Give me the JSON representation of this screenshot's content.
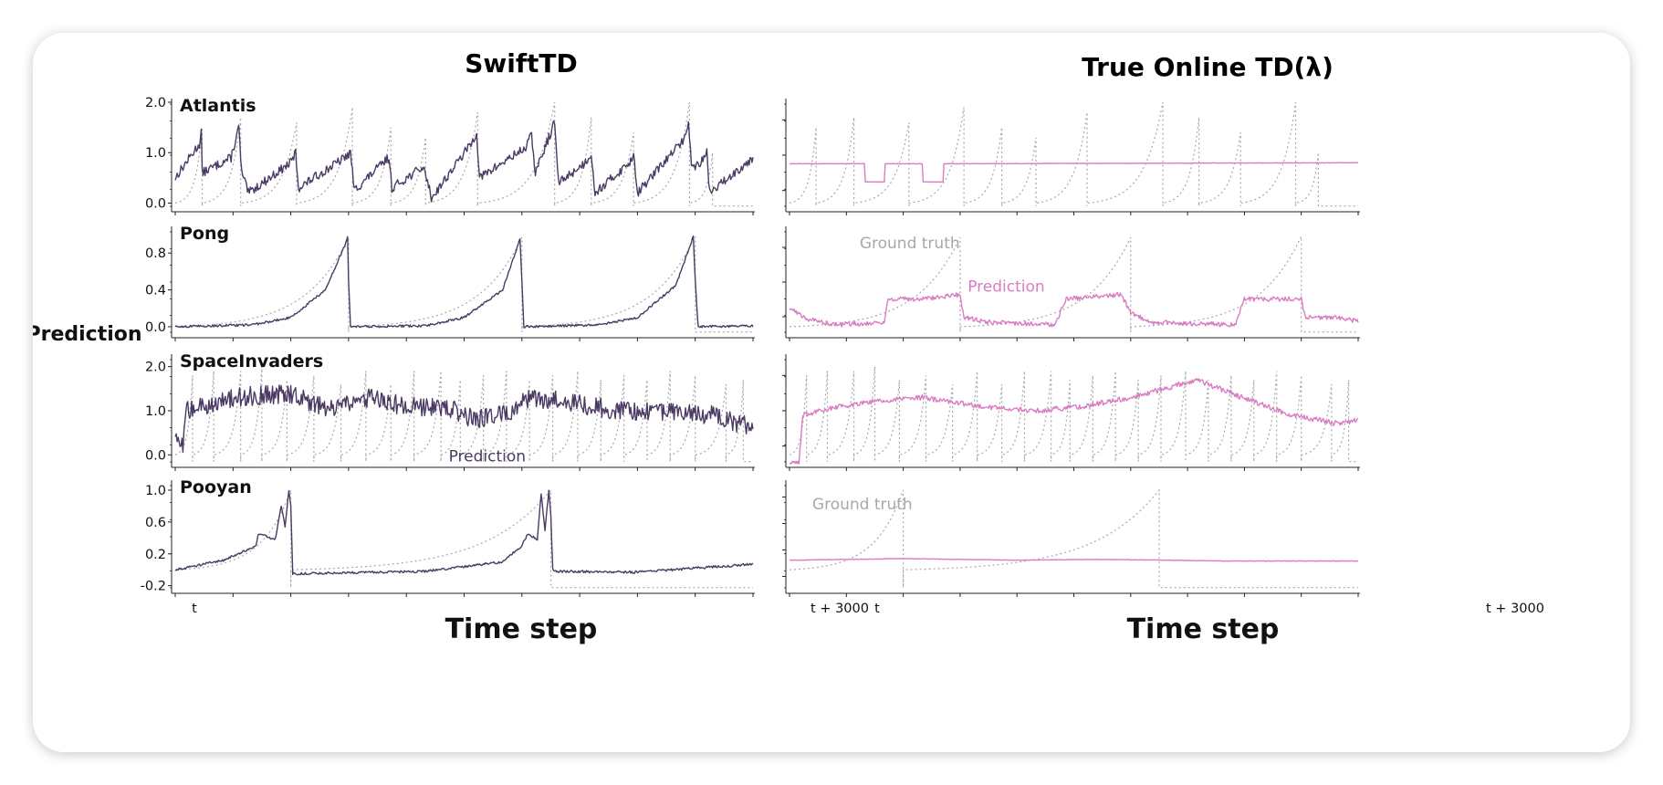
{
  "colors": {
    "swift": "#4a3a64",
    "tod": "#da7cc2",
    "truth": "#a8a8a8",
    "axis": "#222222",
    "title_swift": "#4f3b6e",
    "title_tod": "#e07cc4"
  },
  "figure": {
    "column_titles": [
      "SwiftTD",
      "True Online TD(λ)"
    ],
    "ylabel": "Prediction",
    "xlabel": "Time step",
    "x_tick_labels": [
      "t",
      "t + 3000"
    ]
  },
  "chart_data": [
    {
      "id": "swift-atlantis",
      "type": "line",
      "game": "Atlantis",
      "method": "SwiftTD",
      "xlim": [
        0,
        3000
      ],
      "ylim": [
        -0.1,
        2.0
      ],
      "yticks": [
        "0.0",
        "1.0",
        "2.0"
      ],
      "truth_peaks": [
        [
          140,
          1.5
        ],
        [
          340,
          1.7
        ],
        [
          630,
          1.6
        ],
        [
          920,
          1.9
        ],
        [
          1120,
          1.5
        ],
        [
          1300,
          1.3
        ],
        [
          1570,
          1.8
        ],
        [
          1970,
          2.0
        ],
        [
          2160,
          1.7
        ],
        [
          2380,
          1.4
        ],
        [
          2670,
          2.0
        ],
        [
          2790,
          1.0
        ]
      ],
      "truth_shape": "exp",
      "series": [
        {
          "name": "Prediction",
          "noise": 0.09,
          "points": [
            [
              0,
              0.5
            ],
            [
              130,
              1.2
            ],
            [
              135,
              1.45
            ],
            [
              140,
              0.6
            ],
            [
              290,
              0.9
            ],
            [
              330,
              1.5
            ],
            [
              345,
              0.6
            ],
            [
              380,
              0.2
            ],
            [
              600,
              0.8
            ],
            [
              625,
              1.0
            ],
            [
              640,
              0.3
            ],
            [
              880,
              0.9
            ],
            [
              910,
              1.0
            ],
            [
              930,
              0.25
            ],
            [
              1080,
              0.8
            ],
            [
              1110,
              0.9
            ],
            [
              1125,
              0.3
            ],
            [
              1280,
              0.7
            ],
            [
              1300,
              0.6
            ],
            [
              1330,
              0.1
            ],
            [
              1540,
              1.2
            ],
            [
              1565,
              1.4
            ],
            [
              1580,
              0.5
            ],
            [
              1820,
              1.1
            ],
            [
              1850,
              1.35
            ],
            [
              1870,
              0.6
            ],
            [
              1960,
              1.5
            ],
            [
              1970,
              1.6
            ],
            [
              1990,
              0.4
            ],
            [
              2130,
              0.8
            ],
            [
              2160,
              1.0
            ],
            [
              2180,
              0.2
            ],
            [
              2360,
              0.8
            ],
            [
              2380,
              1.0
            ],
            [
              2400,
              0.2
            ],
            [
              2650,
              1.3
            ],
            [
              2665,
              1.7
            ],
            [
              2680,
              0.7
            ],
            [
              2730,
              0.8
            ],
            [
              2760,
              1.0
            ],
            [
              2775,
              0.2
            ],
            [
              3000,
              0.9
            ]
          ]
        }
      ]
    },
    {
      "id": "tod-atlantis",
      "type": "line",
      "game": "Atlantis",
      "method": "True Online TD(λ)",
      "xlim": [
        0,
        3000
      ],
      "ylim": [
        -0.1,
        2.0
      ],
      "yticks": [
        "",
        "",
        ""
      ],
      "truth_peaks": [
        [
          140,
          1.5
        ],
        [
          340,
          1.7
        ],
        [
          630,
          1.6
        ],
        [
          920,
          1.9
        ],
        [
          1120,
          1.5
        ],
        [
          1300,
          1.3
        ],
        [
          1570,
          1.8
        ],
        [
          1970,
          2.0
        ],
        [
          2160,
          1.7
        ],
        [
          2380,
          1.4
        ],
        [
          2670,
          2.0
        ],
        [
          2790,
          1.0
        ]
      ],
      "truth_shape": "exp",
      "series": [
        {
          "name": "Prediction",
          "noise": 0.004,
          "points": [
            [
              0,
              0.78
            ],
            [
              395,
              0.78
            ],
            [
              396,
              0.42
            ],
            [
              500,
              0.42
            ],
            [
              501,
              0.78
            ],
            [
              700,
              0.78
            ],
            [
              701,
              0.42
            ],
            [
              810,
              0.42
            ],
            [
              811,
              0.78
            ],
            [
              3000,
              0.8
            ]
          ]
        }
      ]
    },
    {
      "id": "swift-pong",
      "type": "line",
      "game": "Pong",
      "method": "SwiftTD",
      "xlim": [
        0,
        3000
      ],
      "ylim": [
        -0.08,
        1.05
      ],
      "yticks": [
        "0.0",
        "0.4",
        "0.8"
      ],
      "truth_peaks": [
        [
          900,
          0.97
        ],
        [
          1800,
          0.97
        ],
        [
          2700,
          0.98
        ]
      ],
      "truth_shape": "exp",
      "series": [
        {
          "name": "Prediction",
          "noise": 0.012,
          "points": [
            [
              0,
              0.0
            ],
            [
              400,
              0.02
            ],
            [
              600,
              0.1
            ],
            [
              780,
              0.4
            ],
            [
              880,
              0.88
            ],
            [
              895,
              0.97
            ],
            [
              900,
              0.5
            ],
            [
              910,
              0.0
            ],
            [
              1300,
              0.01
            ],
            [
              1500,
              0.1
            ],
            [
              1700,
              0.4
            ],
            [
              1790,
              0.95
            ],
            [
              1800,
              0.5
            ],
            [
              1810,
              0.0
            ],
            [
              2200,
              0.02
            ],
            [
              2400,
              0.1
            ],
            [
              2600,
              0.45
            ],
            [
              2690,
              0.98
            ],
            [
              2700,
              0.5
            ],
            [
              2715,
              0.0
            ],
            [
              3000,
              0.01
            ]
          ]
        }
      ]
    },
    {
      "id": "tod-pong",
      "type": "line",
      "game": "Pong",
      "method": "True Online TD(λ)",
      "xlim": [
        0,
        3000
      ],
      "ylim": [
        -0.08,
        1.05
      ],
      "yticks": [
        "",
        "",
        ""
      ],
      "truth_peaks": [
        [
          900,
          0.97
        ],
        [
          1800,
          0.97
        ],
        [
          2700,
          0.98
        ]
      ],
      "truth_shape": "exp",
      "series": [
        {
          "name": "Prediction",
          "noise": 0.025,
          "points": [
            [
              0,
              0.2
            ],
            [
              100,
              0.08
            ],
            [
              250,
              0.02
            ],
            [
              500,
              0.05
            ],
            [
              520,
              0.3
            ],
            [
              700,
              0.3
            ],
            [
              900,
              0.35
            ],
            [
              920,
              0.1
            ],
            [
              1050,
              0.05
            ],
            [
              1400,
              0.02
            ],
            [
              1460,
              0.3
            ],
            [
              1750,
              0.35
            ],
            [
              1800,
              0.15
            ],
            [
              1900,
              0.05
            ],
            [
              2350,
              0.02
            ],
            [
              2400,
              0.3
            ],
            [
              2700,
              0.3
            ],
            [
              2720,
              0.1
            ],
            [
              2900,
              0.1
            ],
            [
              3000,
              0.06
            ]
          ]
        }
      ],
      "annotations": [
        {
          "text": "Ground truth",
          "color": "truth",
          "x": 370,
          "y": 0.85
        },
        {
          "text": "Prediction",
          "color": "tod",
          "x": 940,
          "y": 0.38
        }
      ]
    },
    {
      "id": "swift-spaceinvaders",
      "type": "line",
      "game": "SpaceInvaders",
      "method": "SwiftTD",
      "xlim": [
        0,
        3000
      ],
      "ylim": [
        -0.2,
        2.2
      ],
      "yticks": [
        "0.0",
        "1.0",
        "2.0"
      ],
      "truth_peaks": [
        [
          90,
          1.8
        ],
        [
          200,
          1.9
        ],
        [
          340,
          1.9
        ],
        [
          450,
          2.0
        ],
        [
          580,
          1.7
        ],
        [
          720,
          1.8
        ],
        [
          860,
          1.6
        ],
        [
          990,
          1.9
        ],
        [
          1120,
          1.6
        ],
        [
          1240,
          1.9
        ],
        [
          1380,
          1.9
        ],
        [
          1480,
          1.7
        ],
        [
          1600,
          1.8
        ],
        [
          1720,
          1.9
        ],
        [
          1840,
          1.7
        ],
        [
          1960,
          1.8
        ],
        [
          2090,
          1.9
        ],
        [
          2210,
          1.7
        ],
        [
          2330,
          1.8
        ],
        [
          2450,
          1.7
        ],
        [
          2570,
          1.9
        ],
        [
          2700,
          1.8
        ],
        [
          2860,
          1.6
        ],
        [
          2950,
          1.7
        ]
      ],
      "truth_shape": "exp",
      "series": [
        {
          "name": "Prediction",
          "noise": 0.22,
          "points": [
            [
              0,
              0.3
            ],
            [
              40,
              0.2
            ],
            [
              60,
              1.0
            ],
            [
              300,
              1.3
            ],
            [
              600,
              1.4
            ],
            [
              800,
              1.0
            ],
            [
              1000,
              1.3
            ],
            [
              1200,
              1.1
            ],
            [
              1400,
              1.1
            ],
            [
              1550,
              0.8
            ],
            [
              1700,
              0.9
            ],
            [
              1850,
              1.3
            ],
            [
              2050,
              1.2
            ],
            [
              2300,
              1.0
            ],
            [
              2500,
              1.0
            ],
            [
              2800,
              0.9
            ],
            [
              3000,
              0.6
            ]
          ]
        }
      ],
      "annotations": [
        {
          "text": "Prediction",
          "color": "swift",
          "x": 1420,
          "y": -0.15
        }
      ]
    },
    {
      "id": "tod-spaceinvaders",
      "type": "line",
      "game": "SpaceInvaders",
      "method": "True Online TD(λ)",
      "xlim": [
        0,
        3000
      ],
      "ylim": [
        -0.2,
        2.2
      ],
      "yticks": [
        "",
        "",
        ""
      ],
      "truth_peaks": [
        [
          90,
          1.8
        ],
        [
          200,
          1.9
        ],
        [
          340,
          1.9
        ],
        [
          450,
          2.0
        ],
        [
          580,
          1.7
        ],
        [
          720,
          1.8
        ],
        [
          860,
          1.6
        ],
        [
          990,
          1.9
        ],
        [
          1120,
          1.6
        ],
        [
          1240,
          1.9
        ],
        [
          1380,
          1.9
        ],
        [
          1480,
          1.7
        ],
        [
          1600,
          1.8
        ],
        [
          1720,
          1.9
        ],
        [
          1840,
          1.7
        ],
        [
          1960,
          1.8
        ],
        [
          2090,
          1.9
        ],
        [
          2210,
          1.7
        ],
        [
          2330,
          1.8
        ],
        [
          2450,
          1.7
        ],
        [
          2570,
          1.9
        ],
        [
          2700,
          1.8
        ],
        [
          2860,
          1.6
        ],
        [
          2950,
          1.7
        ]
      ],
      "truth_shape": "exp",
      "series": [
        {
          "name": "Prediction",
          "noise": 0.06,
          "points": [
            [
              0,
              -0.2
            ],
            [
              50,
              -0.2
            ],
            [
              70,
              0.9
            ],
            [
              150,
              1.0
            ],
            [
              400,
              1.2
            ],
            [
              700,
              1.3
            ],
            [
              1000,
              1.1
            ],
            [
              1300,
              1.0
            ],
            [
              1550,
              1.1
            ],
            [
              1800,
              1.3
            ],
            [
              2150,
              1.7
            ],
            [
              2450,
              1.2
            ],
            [
              2650,
              0.9
            ],
            [
              2900,
              0.7
            ],
            [
              3000,
              0.8
            ]
          ]
        }
      ]
    },
    {
      "id": "swift-pooyan",
      "type": "line",
      "game": "Pooyan",
      "method": "SwiftTD",
      "xlim": [
        0,
        3000
      ],
      "ylim": [
        -0.25,
        1.08
      ],
      "yticks": [
        "-0.2",
        "0.2",
        "0.6",
        "1.0"
      ],
      "truth_peaks": [
        [
          600,
          1.0
        ],
        [
          1950,
          1.0
        ]
      ],
      "truth_shape": "exp",
      "series": [
        {
          "name": "Prediction",
          "noise": 0.015,
          "points": [
            [
              0,
              0.0
            ],
            [
              250,
              0.12
            ],
            [
              420,
              0.3
            ],
            [
              430,
              0.45
            ],
            [
              520,
              0.38
            ],
            [
              550,
              0.8
            ],
            [
              570,
              0.55
            ],
            [
              590,
              1.0
            ],
            [
              600,
              0.8
            ],
            [
              610,
              -0.05
            ],
            [
              620,
              -0.05
            ],
            [
              1300,
              -0.02
            ],
            [
              1700,
              0.1
            ],
            [
              1800,
              0.3
            ],
            [
              1830,
              0.45
            ],
            [
              1880,
              0.38
            ],
            [
              1900,
              0.95
            ],
            [
              1920,
              0.5
            ],
            [
              1940,
              1.0
            ],
            [
              1950,
              0.7
            ],
            [
              1960,
              0.0
            ],
            [
              1980,
              -0.02
            ],
            [
              2400,
              -0.03
            ],
            [
              3000,
              0.07
            ]
          ]
        }
      ]
    },
    {
      "id": "tod-pooyan",
      "type": "line",
      "game": "Pooyan",
      "method": "True Online TD(λ)",
      "xlim": [
        0,
        3000
      ],
      "ylim": [
        -0.25,
        1.08
      ],
      "yticks": [
        "",
        "",
        "",
        ""
      ],
      "truth_peaks": [
        [
          600,
          1.0
        ],
        [
          1950,
          1.0
        ]
      ],
      "truth_shape": "exp",
      "series": [
        {
          "name": "Prediction",
          "noise": 0.003,
          "points": [
            [
              0,
              0.12
            ],
            [
              300,
              0.13
            ],
            [
              600,
              0.14
            ],
            [
              1200,
              0.12
            ],
            [
              1600,
              0.13
            ],
            [
              2000,
              0.12
            ],
            [
              2300,
              0.11
            ],
            [
              3000,
              0.11
            ]
          ]
        }
      ],
      "annotations": [
        {
          "text": "Ground truth",
          "color": "truth",
          "x": 120,
          "y": 0.76
        }
      ]
    }
  ]
}
